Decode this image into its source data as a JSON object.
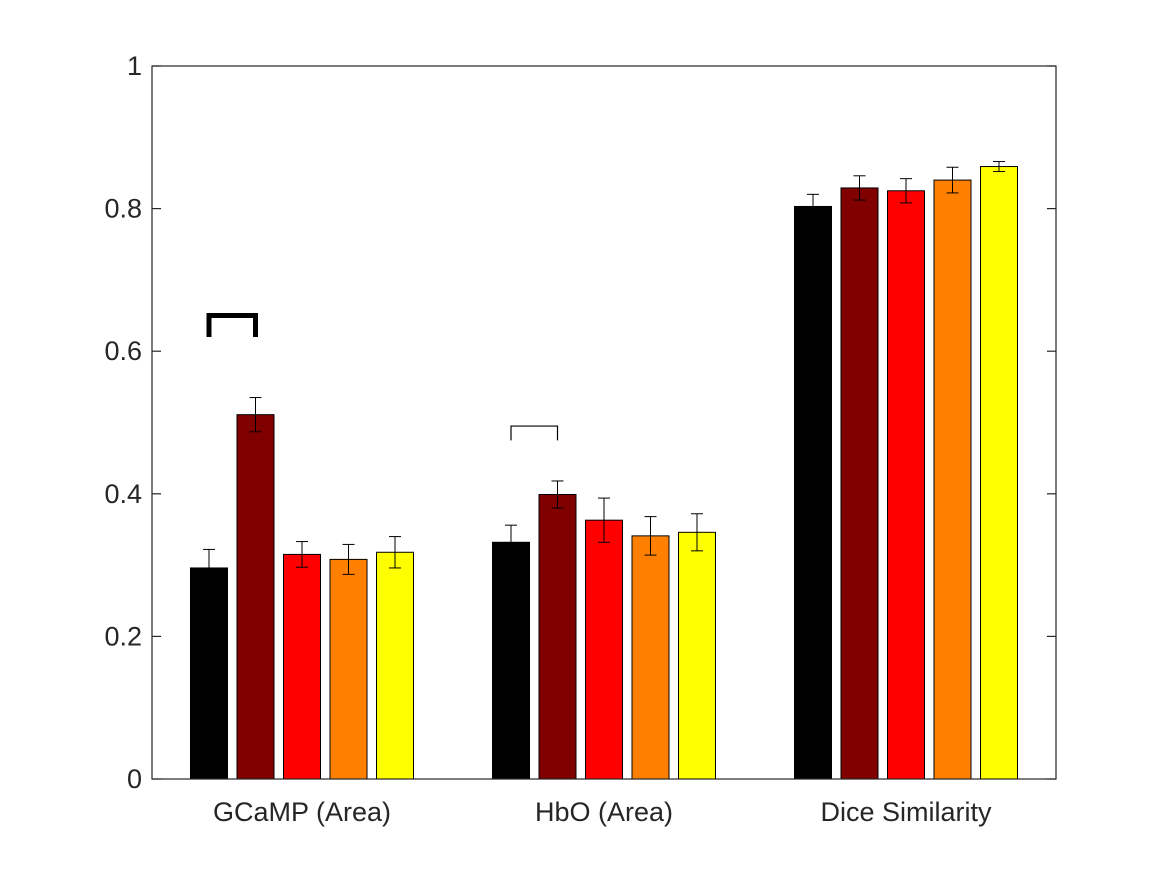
{
  "chart_data": {
    "type": "bar",
    "categories": [
      "GCaMP (Area)",
      "HbO (Area)",
      "Dice Similarity"
    ],
    "series": [
      {
        "color": "#000000",
        "values": [
          0.296,
          0.332,
          0.803
        ],
        "errors": [
          0.026,
          0.024,
          0.017
        ]
      },
      {
        "color": "#800000",
        "values": [
          0.511,
          0.399,
          0.829
        ],
        "errors": [
          0.024,
          0.019,
          0.017
        ]
      },
      {
        "color": "#ff0000",
        "values": [
          0.315,
          0.363,
          0.825
        ],
        "errors": [
          0.018,
          0.031,
          0.017
        ]
      },
      {
        "color": "#ff8000",
        "values": [
          0.308,
          0.341,
          0.84
        ],
        "errors": [
          0.021,
          0.027,
          0.018
        ]
      },
      {
        "color": "#ffff00",
        "values": [
          0.318,
          0.346,
          0.859
        ],
        "errors": [
          0.022,
          0.026,
          0.007
        ]
      }
    ],
    "ylim": [
      0,
      1
    ],
    "yticks": [
      0,
      0.2,
      0.4,
      0.6,
      0.8,
      1
    ],
    "ytick_labels": [
      "0",
      "0.2",
      "0.4",
      "0.6",
      "0.8",
      "1"
    ],
    "grid": false,
    "significance_brackets": [
      {
        "category": 0,
        "from_series": 0,
        "to_series": 1,
        "y": 0.65,
        "y_bottom": 0.62,
        "bold": true
      },
      {
        "category": 1,
        "from_series": 0,
        "to_series": 1,
        "y": 0.495,
        "y_bottom": 0.475,
        "bold": false
      }
    ]
  }
}
